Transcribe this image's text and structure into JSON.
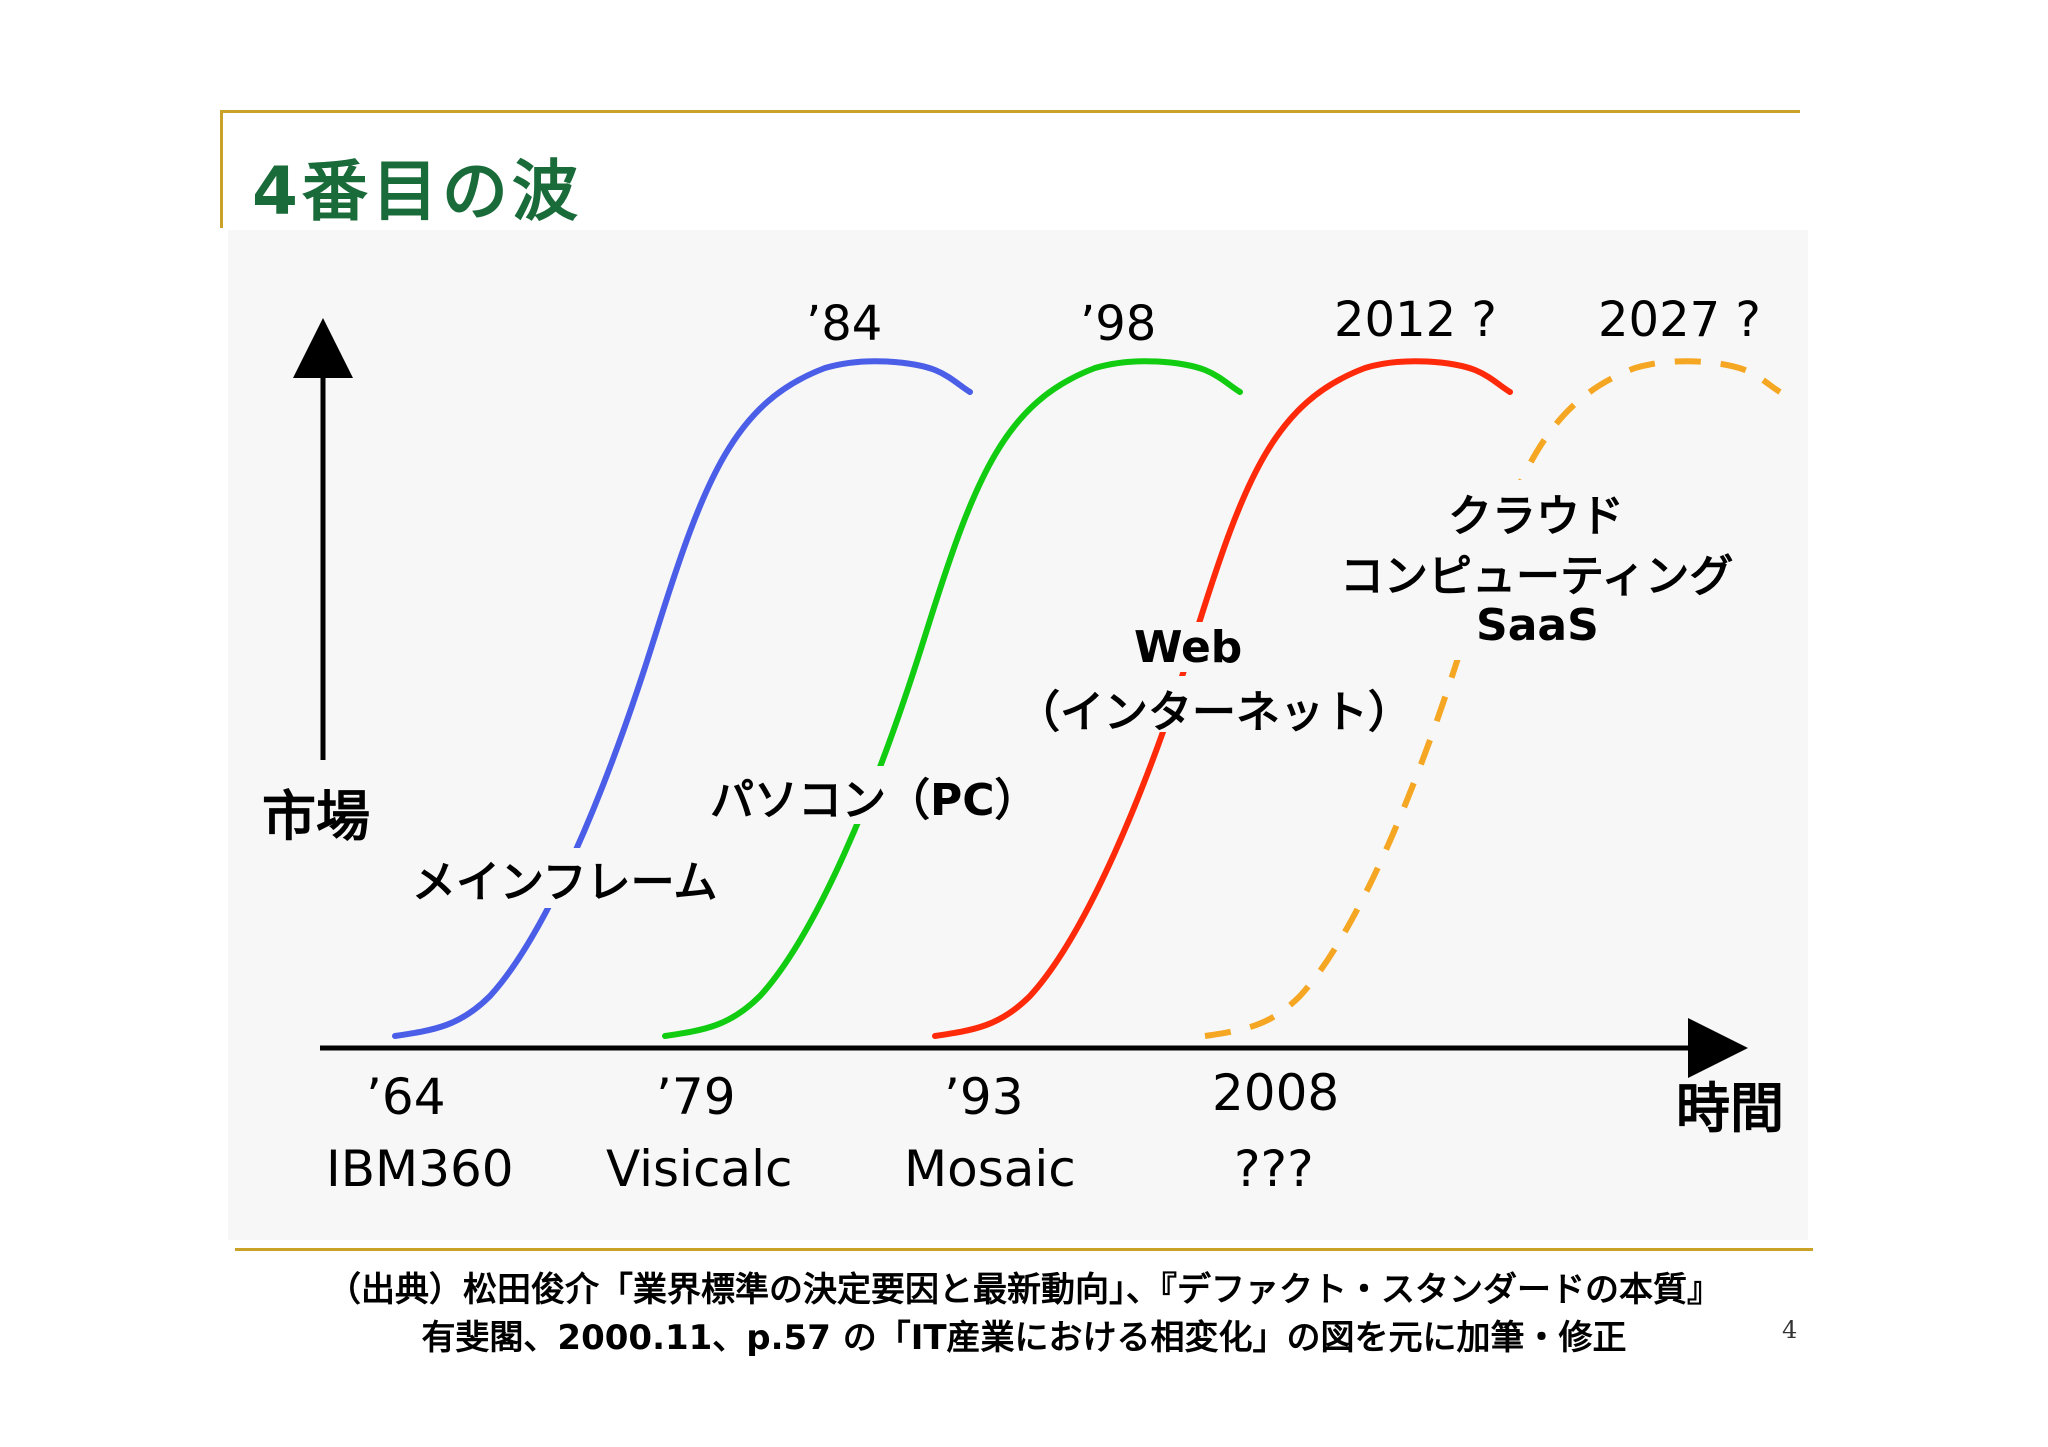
{
  "slide": {
    "title": "4番目の波",
    "page_number": "4"
  },
  "axes": {
    "y_label": "市場",
    "x_label": "時間"
  },
  "waves": [
    {
      "name": "メインフレーム",
      "start_year": "’64",
      "start_event": "IBM360",
      "peak_label": "’84",
      "color": "#4a5ee8",
      "style": "solid"
    },
    {
      "name": "パソコン（PC）",
      "start_year": "’79",
      "start_event": "Visicalc",
      "peak_label": "’98",
      "color": "#11cc11",
      "style": "solid"
    },
    {
      "name_line1": "Web",
      "name_line2": "（インターネット）",
      "start_year": "’93",
      "start_event": "Mosaic",
      "peak_label": "2012 ?",
      "color": "#ff2a0a",
      "style": "solid"
    },
    {
      "name_line1": "クラウド",
      "name_line2": "コンピューティング",
      "name_line3": "SaaS",
      "start_year": "2008",
      "start_event": "???",
      "peak_label": "2027 ?",
      "color": "#f5a623",
      "style": "dashed"
    }
  ],
  "source": {
    "line1": "（出典）松田俊介「業界標準の決定要因と最新動向」、『デファクト・スタンダードの本質』",
    "line2": "有斐閣、2000.11、p.57 の「IT産業における相変化」の図を元に加筆・修正"
  }
}
